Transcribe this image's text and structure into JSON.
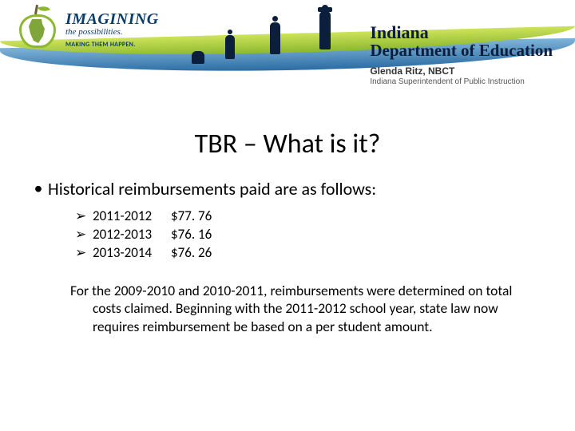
{
  "header": {
    "logo": {
      "imagining": "IMAGINING",
      "the_possibilities": "the possibilities.",
      "making_happen": "MAKING THEM HAPPEN."
    },
    "department": {
      "line1": "Indiana",
      "line2": "Department of Education",
      "name": "Glenda Ritz, NBCT",
      "role": "Indiana Superintendent of Public Instruction"
    },
    "colors": {
      "green": "#8cb82f",
      "blue_dark": "#0b3c6e",
      "swoosh_blue": "#2b6ca3"
    }
  },
  "slide": {
    "title": "TBR – What is it?",
    "bullet": "Historical reimbursements paid are as follows:",
    "items": [
      {
        "year": "2011-2012",
        "amount": "$77. 76"
      },
      {
        "year": "2012-2013",
        "amount": "$76. 16"
      },
      {
        "year": "2013-2014",
        "amount": "$76. 26"
      }
    ],
    "paragraph": "For the 2009-2010 and 2010-2011, reimbursements were determined on total costs claimed.  Beginning with the 2011-2012 school year, state law now requires reimbursement be based on a per student amount."
  }
}
